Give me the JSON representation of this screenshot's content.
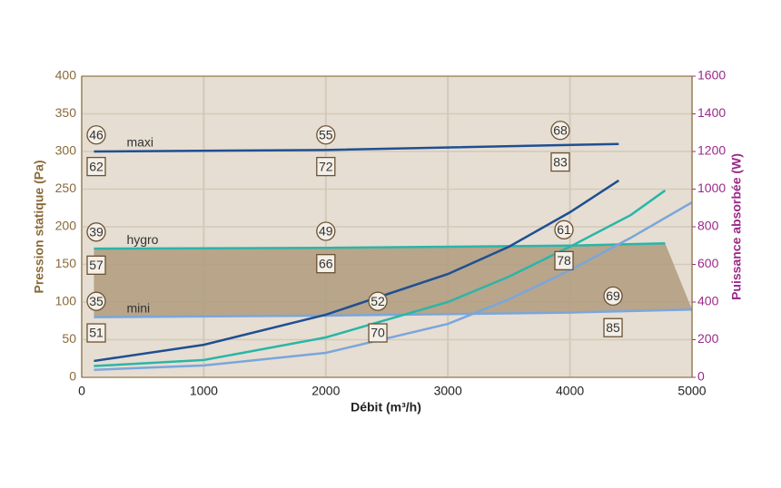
{
  "chart_data": {
    "type": "line",
    "xlabel": "Débit (m³/h)",
    "ylabel": "Pression statique (Pa)",
    "y2label": "Puissance absorbée (W)",
    "xlim": [
      0,
      5000
    ],
    "xticks": [
      0,
      1000,
      2000,
      3000,
      4000,
      5000
    ],
    "ylim": [
      0,
      400
    ],
    "yticks": [
      0,
      50,
      100,
      150,
      200,
      250,
      300,
      350,
      400
    ],
    "y2lim": [
      0,
      1600
    ],
    "y2ticks": [
      0,
      200,
      400,
      600,
      800,
      1000,
      1200,
      1400,
      1600
    ],
    "grid": true,
    "area_color": "#b39e82",
    "series": [
      {
        "name": "maxi",
        "color": "#1f4f93",
        "x": [
          100,
          2000,
          4400
        ],
        "values": [
          300,
          302,
          310
        ]
      },
      {
        "name": "hygro",
        "color": "#2bb5a9",
        "x": [
          100,
          2000,
          4000,
          4780
        ],
        "values": [
          171,
          172,
          175,
          178
        ]
      },
      {
        "name": "mini",
        "color": "#7aa6dc",
        "x": [
          100,
          2000,
          4000,
          5000
        ],
        "values": [
          80,
          82,
          86,
          90
        ]
      },
      {
        "color": "#1f4f93",
        "axis": "y2",
        "x": [
          100,
          1000,
          2000,
          3000,
          3500,
          4000,
          4400
        ],
        "values": [
          87,
          173,
          333,
          549,
          694,
          877,
          1046
        ]
      },
      {
        "color": "#2bb5a9",
        "axis": "y2",
        "x": [
          100,
          1000,
          2000,
          3000,
          3500,
          4000,
          4500,
          4780
        ],
        "values": [
          60,
          92,
          212,
          400,
          535,
          694,
          863,
          993
        ]
      },
      {
        "color": "#7aa6dc",
        "axis": "y2",
        "x": [
          100,
          1000,
          2000,
          3000,
          3500,
          4000,
          4500,
          5000
        ],
        "values": [
          40,
          63,
          130,
          284,
          414,
          569,
          742,
          930
        ]
      }
    ],
    "circles": [
      {
        "value": 46,
        "x": 119,
        "y": 322
      },
      {
        "value": 55,
        "x": 2000,
        "y": 322
      },
      {
        "value": 68,
        "x": 3921,
        "y": 328
      },
      {
        "value": 39,
        "x": 119,
        "y": 193
      },
      {
        "value": 49,
        "x": 2000,
        "y": 194
      },
      {
        "value": 61,
        "x": 3951,
        "y": 196
      },
      {
        "value": 35,
        "x": 119,
        "y": 101
      },
      {
        "value": 52,
        "x": 2426,
        "y": 101
      },
      {
        "value": 69,
        "x": 4353,
        "y": 108
      }
    ],
    "boxes": [
      {
        "value": 62,
        "x": 119,
        "y": 280
      },
      {
        "value": 72,
        "x": 2000,
        "y": 280
      },
      {
        "value": 83,
        "x": 3921,
        "y": 286
      },
      {
        "value": 57,
        "x": 119,
        "y": 149
      },
      {
        "value": 66,
        "x": 2000,
        "y": 151
      },
      {
        "value": 78,
        "x": 3951,
        "y": 155
      },
      {
        "value": 51,
        "x": 119,
        "y": 59
      },
      {
        "value": 70,
        "x": 2426,
        "y": 59
      },
      {
        "value": 85,
        "x": 4353,
        "y": 66
      }
    ]
  }
}
